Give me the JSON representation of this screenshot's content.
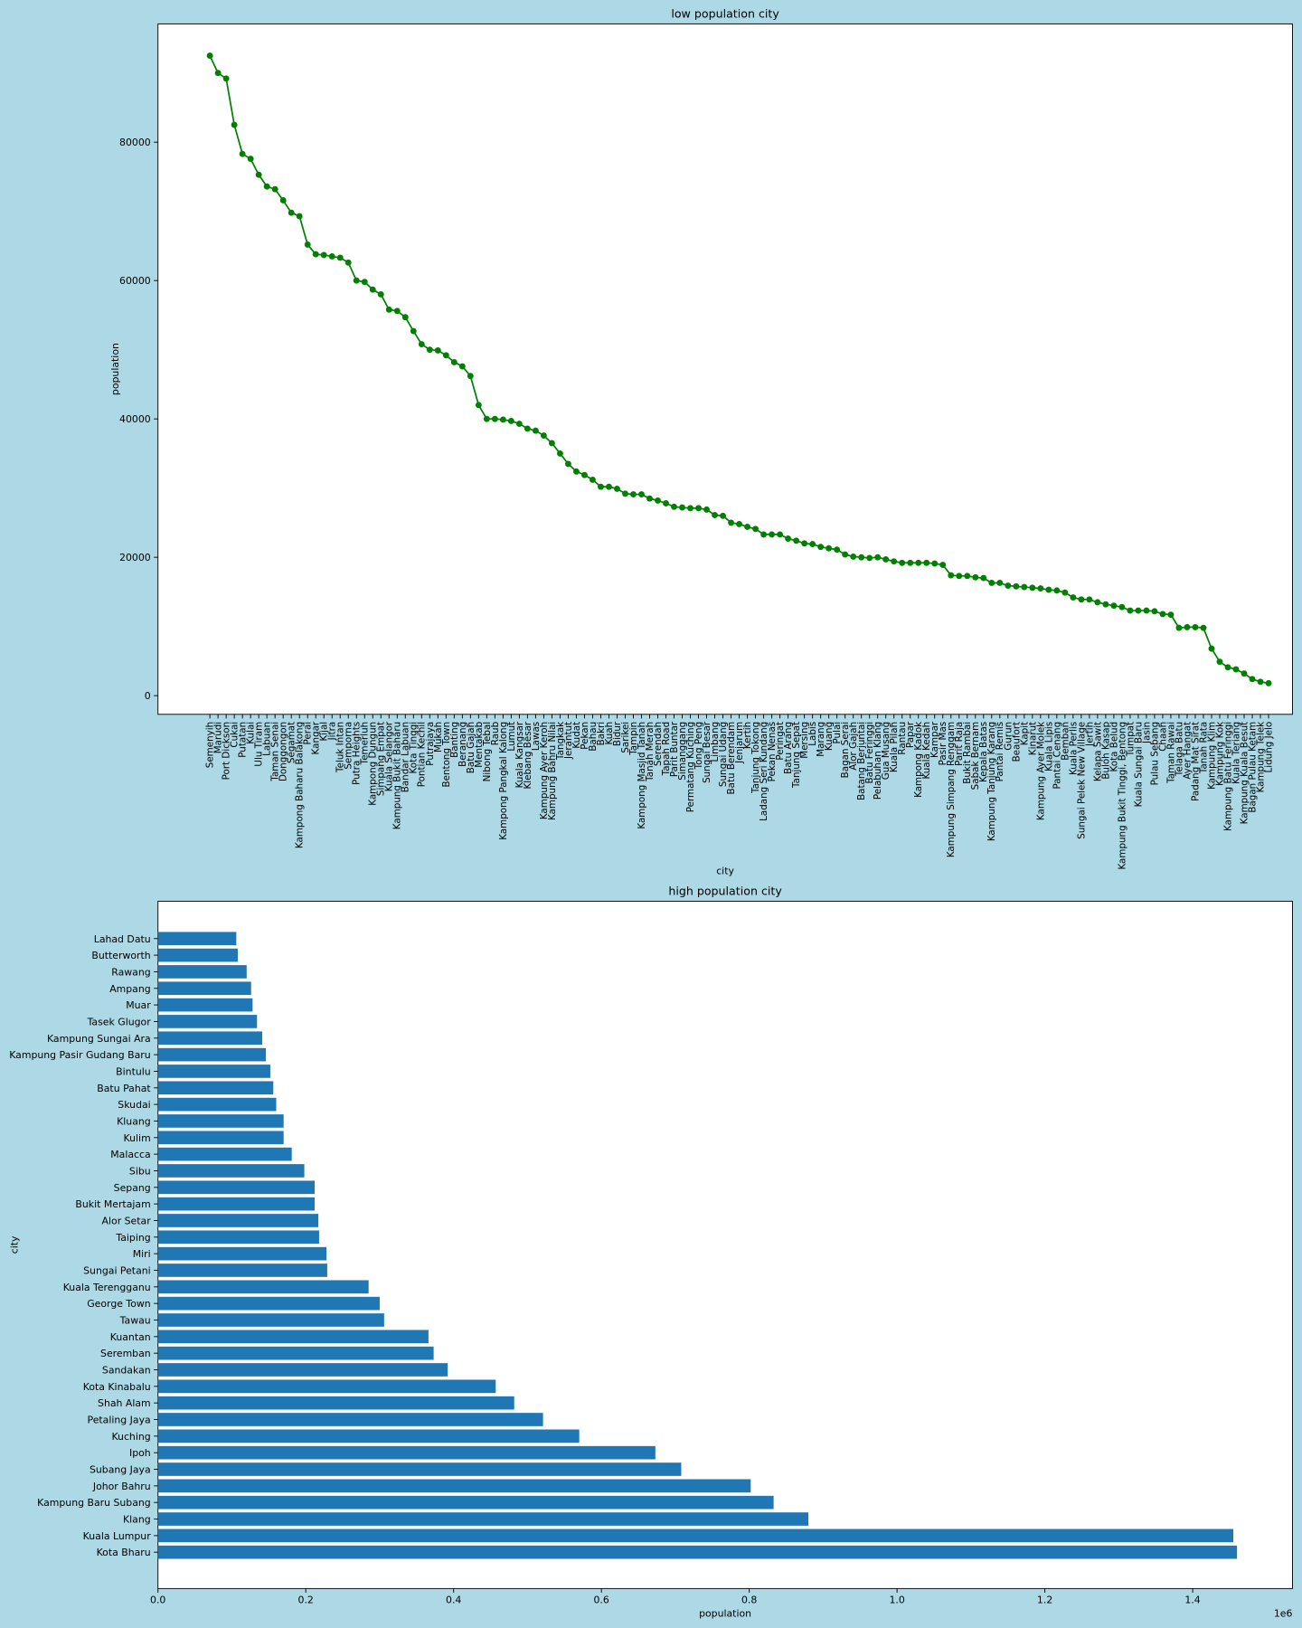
{
  "chart_data": [
    {
      "type": "line",
      "title": "low population city",
      "x_label": "city",
      "y_label": "population",
      "color": "green",
      "categories": [
        "Semenyih",
        "Marudi",
        "Port Dickson",
        "Cukai",
        "Putatan",
        "Kulai",
        "Ulu Tiram",
        "Labuan",
        "Taman Senai",
        "Donggongon",
        "Segamat",
        "Kampong Baharu Balakong",
        "Perai",
        "Kangar",
        "Kijal",
        "Jitra",
        "Teluk Intan",
        "Semporna",
        "Putra Heights",
        "Temerluh",
        "Kampong Dungun",
        "Simpang Empat",
        "Kuala Selangor",
        "Kampung Bukit Baharu",
        "Bandar Labuan",
        "Kota Tinggi",
        "Pontian Kechil",
        "Putrajaya",
        "Mukah",
        "Bentong Town",
        "Banting",
        "Beranang",
        "Batu Gajah",
        "Mentakab",
        "Nibong Tebal",
        "Raub",
        "Kampong Pangkal Kalong",
        "Lumut",
        "Kuala Kangsar",
        "Klebang Besar",
        "Lawas",
        "Kampung Ayer Keroh",
        "Kampung Bahru Nilai",
        "Tangkak",
        "Jerantut",
        "Kudat",
        "Pekan",
        "Bahau",
        "Bakri",
        "Kuah",
        "Bidur",
        "Sarikei",
        "Tampin",
        "Kampong Masjid Tanah",
        "Tanah Merah",
        "Serendah",
        "Tapah Road",
        "Parit Buntar",
        "Simanggang",
        "Permatang Kuching",
        "Tong Peng",
        "Sungai Besar",
        "Limbang",
        "Sungai Udang",
        "Batu Berendam",
        "Jenjarum",
        "Kertih",
        "Tanjung Tokong",
        "Ladang Seri Kundang",
        "Pekan Nenas",
        "Peringat",
        "Batu Arang",
        "Tanjung Sepat",
        "Mersing",
        "Labis",
        "Marang",
        "Kuang",
        "Pulai",
        "Bagan Serai",
        "Alor Gajah",
        "Batang Berjuntai",
        "Batu Feringgi",
        "Pelabuhan Klang",
        "Gua Musang",
        "Kuala Pilah",
        "Rantau",
        "Papar",
        "Kampong Kadok",
        "Kuala Kedah",
        "Kampar",
        "Pasir Mas",
        "Kampung Simpang Renggam",
        "Parit Raja",
        "Bukit Rambai",
        "Sabak Bernam",
        "Kepala Batas",
        "Kampung Tanjung Karang",
        "Pantai Remis",
        "Gurun",
        "Beaufort",
        "Kapit",
        "Kinarut",
        "Kampung Ayer Molek",
        "Kuala Lipis",
        "Pantai Cenang",
        "Bemban",
        "Kuala Perlis",
        "Sungai Pelek New Village",
        "Jertih",
        "Kelapa Sawit",
        "Buloh Kasap",
        "Kota Belud",
        "Kampung Bukit Tinggi, Bentong",
        "Tumpat",
        "Kuala Sungai Baru",
        "Jasin",
        "Pulau Sebang",
        "Chaah",
        "Taman Rawai",
        "Telaga Batu",
        "Ayer Hangat",
        "Padang Mat Sirat",
        "Tanah Rata",
        "Kampung Klim",
        "Kampung Kok",
        "Kampung Batu Feringgi",
        "Kuala Teriang",
        "Kampung Kuala Besut",
        "Bagan Pulau Ketam",
        "Kampung Telek",
        "Lidung Jelo"
      ],
      "values": [
        92500,
        90000,
        89200,
        82500,
        78300,
        77600,
        75300,
        73600,
        73200,
        71600,
        69800,
        69300,
        65200,
        63800,
        63700,
        63500,
        63300,
        62600,
        60000,
        59800,
        58700,
        58000,
        55800,
        55600,
        54700,
        52700,
        50800,
        50000,
        49900,
        49200,
        48200,
        47600,
        46200,
        42000,
        40000,
        40000,
        39900,
        39700,
        39300,
        38600,
        38300,
        37600,
        36500,
        35000,
        33500,
        32400,
        31900,
        31200,
        30200,
        30200,
        29900,
        29200,
        29100,
        29100,
        28500,
        28200,
        27800,
        27300,
        27200,
        27100,
        27100,
        26900,
        26100,
        26000,
        25000,
        24800,
        24400,
        24100,
        23300,
        23300,
        23300,
        22700,
        22400,
        22000,
        21900,
        21500,
        21300,
        21100,
        20400,
        20100,
        20000,
        19900,
        20000,
        19700,
        19400,
        19200,
        19200,
        19200,
        19200,
        19100,
        18900,
        17400,
        17300,
        17300,
        17100,
        17000,
        16300,
        16300,
        15900,
        15800,
        15700,
        15600,
        15500,
        15300,
        15200,
        14900,
        14200,
        13900,
        13900,
        13500,
        13200,
        13000,
        12800,
        12300,
        12300,
        12300,
        12200,
        11800,
        11700,
        9800,
        9900,
        9900,
        9800,
        6800,
        4900,
        4100,
        3800,
        3200,
        2400,
        2000,
        1800
      ],
      "ylim": [
        -2700,
        97100
      ],
      "yticks": [
        0,
        20000,
        40000,
        60000,
        80000
      ]
    },
    {
      "type": "barh",
      "title": "high population city",
      "x_label": "population",
      "y_label": "city",
      "color": "#1f77b4",
      "x_offset_label": "1e6",
      "categories": [
        "Kota Bharu",
        "Kuala Lumpur",
        "Klang",
        "Kampung Baru Subang",
        "Johor Bahru",
        "Subang Jaya",
        "Ipoh",
        "Kuching",
        "Petaling Jaya",
        "Shah Alam",
        "Kota Kinabalu",
        "Sandakan",
        "Seremban",
        "Kuantan",
        "Tawau",
        "George Town",
        "Kuala Terengganu",
        "Sungai Petani",
        "Miri",
        "Taiping",
        "Alor Setar",
        "Bukit Mertajam",
        "Sepang",
        "Sibu",
        "Malacca",
        "Kulim",
        "Kluang",
        "Skudai",
        "Batu Pahat",
        "Bintulu",
        "Kampung Pasir Gudang Baru",
        "Kampung Sungai Ara",
        "Tasek Glugor",
        "Muar",
        "Ampang",
        "Rawang",
        "Butterworth",
        "Lahad Datu"
      ],
      "values": [
        1460000,
        1455000,
        880000,
        833000,
        802000,
        708000,
        673000,
        570000,
        521000,
        482000,
        457000,
        392000,
        373000,
        366000,
        306000,
        300000,
        285000,
        229000,
        228000,
        218000,
        217000,
        212000,
        212000,
        198000,
        181000,
        170000,
        170000,
        160000,
        156000,
        152000,
        146000,
        141000,
        134000,
        128000,
        126000,
        120000,
        108000,
        106000
      ],
      "xlim": [
        0,
        1535000
      ],
      "xticks": [
        {
          "value": 0,
          "label": "0.0"
        },
        {
          "value": 200000,
          "label": "0.2"
        },
        {
          "value": 400000,
          "label": "0.4"
        },
        {
          "value": 600000,
          "label": "0.6"
        },
        {
          "value": 800000,
          "label": "0.8"
        },
        {
          "value": 1000000,
          "label": "1.0"
        },
        {
          "value": 1200000,
          "label": "1.2"
        },
        {
          "value": 1400000,
          "label": "1.4"
        }
      ]
    }
  ]
}
